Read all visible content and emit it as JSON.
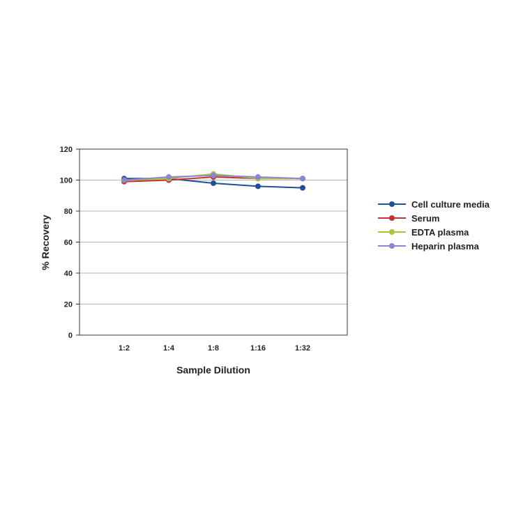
{
  "chart_data": {
    "type": "line",
    "title": "",
    "xlabel": "Sample Dilution",
    "ylabel": "% Recovery",
    "categories": [
      "1:2",
      "1:4",
      "1:8",
      "1:16",
      "1:32"
    ],
    "ylim": [
      0,
      120
    ],
    "yticks": [
      0,
      20,
      40,
      60,
      80,
      100,
      120
    ],
    "grid": true,
    "legend_position": "right",
    "series": [
      {
        "name": "Cell culture media",
        "color": "#1f4e9a",
        "values": [
          101,
          101,
          98,
          96,
          95
        ]
      },
      {
        "name": "Serum",
        "color": "#c8312b",
        "values": [
          99,
          100,
          102,
          101,
          101
        ]
      },
      {
        "name": "EDTA plasma",
        "color": "#a8c43a",
        "values": [
          100,
          101,
          104,
          101,
          101
        ]
      },
      {
        "name": "Heparin plasma",
        "color": "#8a86d4",
        "values": [
          100,
          102,
          103,
          102,
          101
        ]
      }
    ]
  }
}
